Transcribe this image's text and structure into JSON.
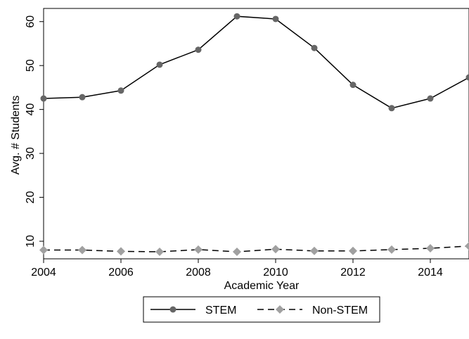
{
  "chart_data": {
    "type": "line",
    "title": "",
    "xlabel": "Academic Year",
    "ylabel": "Avg. # Students",
    "xlim": [
      2004,
      2015
    ],
    "ylim": [
      6,
      63
    ],
    "xticks": [
      2004,
      2006,
      2008,
      2010,
      2012,
      2014
    ],
    "yticks": [
      10,
      20,
      30,
      40,
      50,
      60
    ],
    "grid": false,
    "legend_position": "bottom",
    "series": [
      {
        "name": "STEM",
        "style": "solid",
        "marker": "circle",
        "line_color": "#000000",
        "marker_color": "#666666",
        "x": [
          2004,
          2005,
          2006,
          2007,
          2008,
          2009,
          2010,
          2011,
          2012,
          2013,
          2014,
          2015
        ],
        "y": [
          42.5,
          42.8,
          44.3,
          50.2,
          53.6,
          61.2,
          60.6,
          54.0,
          45.6,
          40.3,
          42.5,
          47.3
        ]
      },
      {
        "name": "Non-STEM",
        "style": "dashed",
        "marker": "diamond",
        "line_color": "#000000",
        "marker_color": "#a0a0a0",
        "x": [
          2004,
          2005,
          2006,
          2007,
          2008,
          2009,
          2010,
          2011,
          2012,
          2013,
          2014,
          2015
        ],
        "y": [
          8.0,
          8.0,
          7.7,
          7.6,
          8.1,
          7.6,
          8.2,
          7.8,
          7.8,
          8.1,
          8.4,
          8.9
        ]
      }
    ]
  }
}
